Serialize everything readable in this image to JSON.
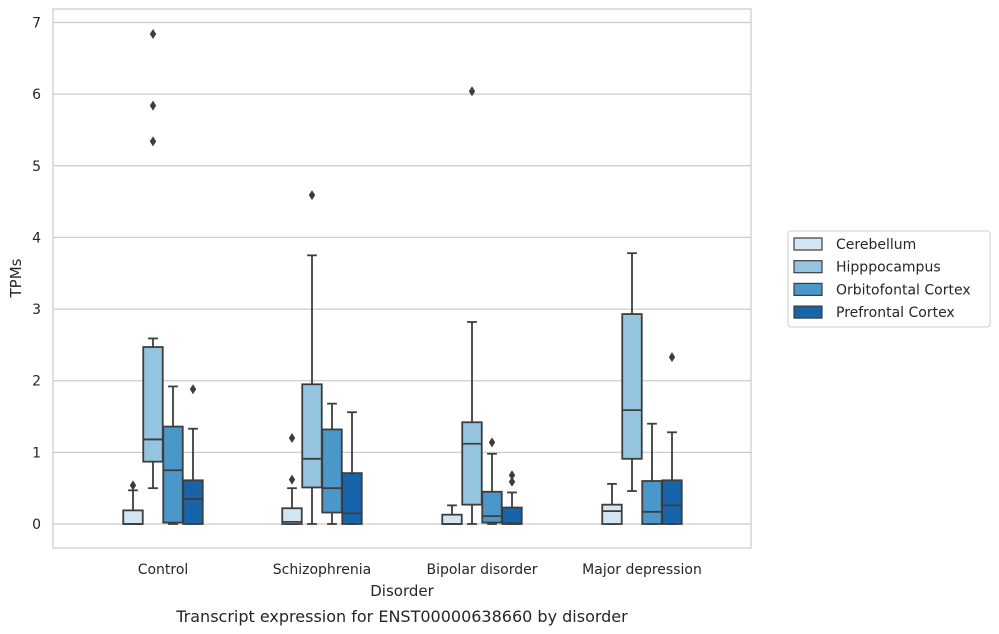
{
  "chart_data": {
    "type": "box",
    "title": "",
    "xlabel": "Disorder",
    "ylabel": "TPMs",
    "caption": "Transcript expression for ENST00000638660 by disorder",
    "ylim": [
      -0.33,
      7.2
    ],
    "yticks": [
      0,
      1,
      2,
      3,
      4,
      5,
      6,
      7
    ],
    "grid": "horizontal",
    "legend_position": "right",
    "categories": [
      "Control",
      "Schizophrenia",
      "Bipolar disorder",
      "Major depression"
    ],
    "series": [
      {
        "name": "Cerebellum",
        "color": "#d3e4f3",
        "boxes": [
          {
            "whislo": 0,
            "q1": 0,
            "med": 0,
            "q3": 0.19,
            "whishi": 0.47,
            "fliers": [
              0.54
            ]
          },
          {
            "whislo": 0,
            "q1": 0,
            "med": 0.03,
            "q3": 0.22,
            "whishi": 0.5,
            "fliers": [
              0.62,
              1.2
            ]
          },
          {
            "whislo": 0,
            "q1": 0,
            "med": 0,
            "q3": 0.13,
            "whishi": 0.26,
            "fliers": []
          },
          {
            "whislo": 0,
            "q1": 0,
            "med": 0.18,
            "q3": 0.27,
            "whishi": 0.56,
            "fliers": []
          }
        ]
      },
      {
        "name": "Hipppocampus",
        "color": "#94c4df",
        "boxes": [
          {
            "whislo": 0.5,
            "q1": 0.87,
            "med": 1.18,
            "q3": 2.47,
            "whishi": 2.59,
            "fliers": [
              5.34,
              5.84,
              6.84
            ]
          },
          {
            "whislo": 0,
            "q1": 0.51,
            "med": 0.91,
            "q3": 1.95,
            "whishi": 3.75,
            "fliers": [
              4.59
            ]
          },
          {
            "whislo": 0,
            "q1": 0.27,
            "med": 1.12,
            "q3": 1.42,
            "whishi": 2.82,
            "fliers": [
              6.04
            ]
          },
          {
            "whislo": 0.46,
            "q1": 0.91,
            "med": 1.59,
            "q3": 2.93,
            "whishi": 3.78,
            "fliers": []
          }
        ]
      },
      {
        "name": "Orbitofontal Cortex",
        "color": "#4a98c9",
        "boxes": [
          {
            "whislo": 0,
            "q1": 0.02,
            "med": 0.75,
            "q3": 1.36,
            "whishi": 1.92,
            "fliers": []
          },
          {
            "whislo": 0,
            "q1": 0.16,
            "med": 0.5,
            "q3": 1.32,
            "whishi": 1.68,
            "fliers": []
          },
          {
            "whislo": 0,
            "q1": 0.02,
            "med": 0.11,
            "q3": 0.45,
            "whishi": 0.98,
            "fliers": [
              1.14
            ]
          },
          {
            "whislo": 0,
            "q1": 0,
            "med": 0.17,
            "q3": 0.6,
            "whishi": 1.4,
            "fliers": []
          }
        ]
      },
      {
        "name": "Prefrontal Cortex",
        "color": "#1764ab",
        "boxes": [
          {
            "whislo": 0,
            "q1": 0,
            "med": 0.35,
            "q3": 0.61,
            "whishi": 1.33,
            "fliers": [
              1.88
            ]
          },
          {
            "whislo": 0,
            "q1": 0,
            "med": 0.15,
            "q3": 0.71,
            "whishi": 1.56,
            "fliers": []
          },
          {
            "whislo": 0,
            "q1": 0,
            "med": 0.01,
            "q3": 0.23,
            "whishi": 0.44,
            "fliers": [
              0.59,
              0.68
            ]
          },
          {
            "whislo": 0,
            "q1": 0,
            "med": 0.26,
            "q3": 0.61,
            "whishi": 1.28,
            "fliers": [
              2.33
            ]
          }
        ]
      }
    ]
  }
}
